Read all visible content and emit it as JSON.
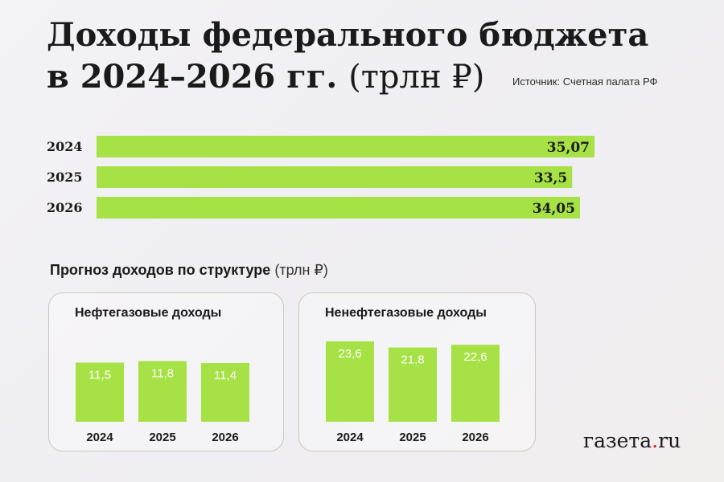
{
  "header": {
    "title_line1": "Доходы федерального бюджета",
    "title_line2": "в 2024–2026 гг.",
    "title_unit": "(трлн ₽)",
    "source": "Источник: Счетная палата РФ"
  },
  "colors": {
    "bar": "#a6e245",
    "text": "#1a1a1a",
    "bar_label": "#ffffff"
  },
  "chart_data": [
    {
      "type": "bar",
      "orientation": "horizontal",
      "categories": [
        "2024",
        "2025",
        "2026"
      ],
      "values": [
        35.07,
        33.5,
        34.05
      ],
      "value_labels": [
        "35,07",
        "33,5",
        "34,05"
      ]
    },
    {
      "type": "bar",
      "title": "Нефтегазовые доходы",
      "categories": [
        "2024",
        "2025",
        "2026"
      ],
      "values": [
        11.5,
        11.8,
        11.4
      ],
      "value_labels": [
        "11,5",
        "11,8",
        "11,4"
      ]
    },
    {
      "type": "bar",
      "title": "Ненефтегазовые доходы",
      "categories": [
        "2024",
        "2025",
        "2026"
      ],
      "values": [
        23.6,
        21.8,
        22.6
      ],
      "value_labels": [
        "23,6",
        "21,8",
        "22,6"
      ]
    }
  ],
  "structure": {
    "title": "Прогноз доходов по структуре",
    "unit": "(трлн ₽)"
  },
  "logo": {
    "text_main": "газета",
    "text_dot": ".",
    "text_tld": "ru"
  }
}
